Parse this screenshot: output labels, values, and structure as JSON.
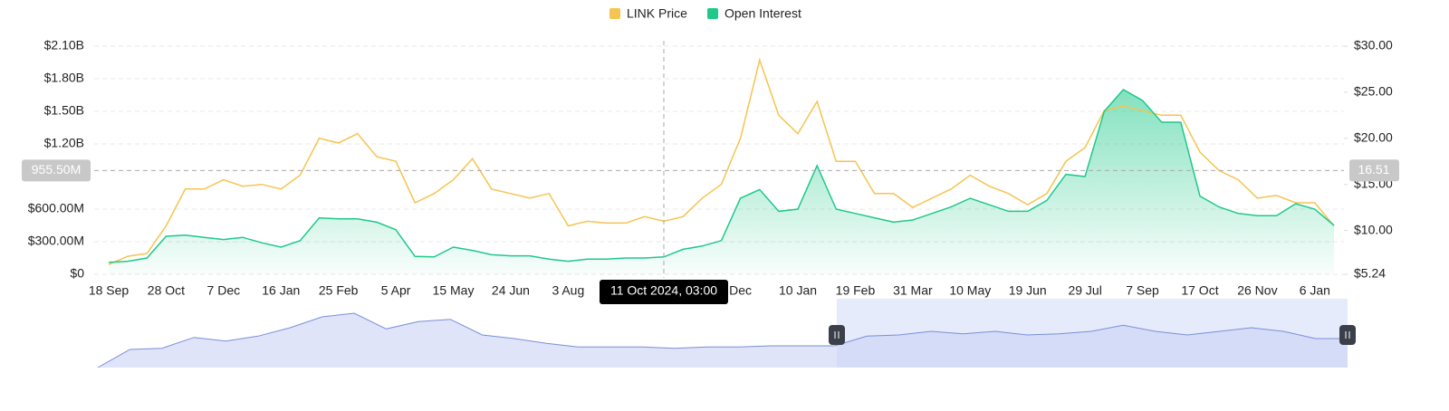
{
  "chart_data": {
    "type": "dual-line-area",
    "legend": [
      "LINK Price",
      "Open Interest"
    ],
    "categories": [
      "18 Sep",
      null,
      null,
      "28 Oct",
      null,
      null,
      "7 Dec",
      null,
      null,
      "16 Jan",
      null,
      null,
      "25 Feb",
      null,
      null,
      "5 Apr",
      null,
      null,
      "15 May",
      null,
      null,
      "24 Jun",
      null,
      null,
      "3 Aug",
      null,
      null,
      null,
      null,
      null,
      null,
      null,
      null,
      "Dec",
      null,
      null,
      "10 Jan",
      null,
      null,
      "19 Feb",
      null,
      null,
      "31 Mar",
      null,
      null,
      "10 May",
      null,
      null,
      "19 Jun",
      null,
      null,
      "29 Jul",
      null,
      null,
      "7 Sep",
      null,
      null,
      "17 Oct",
      null,
      null,
      "26 Nov",
      null,
      null,
      "6 Jan",
      null
    ],
    "series": [
      {
        "name": "LINK Price",
        "color": "#f5c451",
        "axis": "y2",
        "values": [
          6.3,
          7.2,
          7.5,
          10.5,
          14.5,
          14.5,
          15.5,
          14.8,
          15,
          14.5,
          16,
          20,
          19.5,
          20.5,
          18,
          17.5,
          13,
          14,
          15.5,
          17.8,
          14.5,
          14,
          13.5,
          14,
          10.5,
          11,
          10.8,
          10.8,
          11.5,
          11,
          11.5,
          13.5,
          15,
          20,
          28.5,
          22.5,
          20.5,
          24,
          17.5,
          17.5,
          14,
          14,
          12.5,
          13.5,
          14.5,
          16,
          14.8,
          14,
          12.8,
          14,
          17.5,
          19,
          23,
          23.5,
          23,
          22.5,
          22.5,
          18.5,
          16.5,
          15.5,
          13.5,
          13.8,
          13,
          13,
          10.5
        ]
      },
      {
        "name": "Open Interest",
        "color": "#1ec98a",
        "axis": "y",
        "values": [
          110000000,
          120000000,
          150000000,
          350000000,
          360000000,
          340000000,
          320000000,
          340000000,
          290000000,
          250000000,
          310000000,
          520000000,
          510000000,
          510000000,
          480000000,
          410000000,
          165000000,
          160000000,
          250000000,
          220000000,
          180000000,
          170000000,
          170000000,
          140000000,
          120000000,
          140000000,
          140000000,
          150000000,
          150000000,
          160000000,
          230000000,
          260000000,
          310000000,
          700000000,
          780000000,
          580000000,
          600000000,
          1000000000,
          600000000,
          560000000,
          520000000,
          480000000,
          500000000,
          560000000,
          620000000,
          700000000,
          640000000,
          580000000,
          580000000,
          680000000,
          920000000,
          900000000,
          1500000000,
          1700000000,
          1600000000,
          1400000000,
          1400000000,
          720000000,
          620000000,
          560000000,
          540000000,
          540000000,
          650000000,
          600000000,
          450000000
        ]
      }
    ],
    "ylim": [
      0,
      2100000000
    ],
    "yticks": [
      {
        "value": 0,
        "label": "$0"
      },
      {
        "value": 300000000,
        "label": "$300.00M"
      },
      {
        "value": 600000000,
        "label": "$600.00M"
      },
      {
        "value": 1200000000,
        "label": "$1.20B"
      },
      {
        "value": 1500000000,
        "label": "$1.50B"
      },
      {
        "value": 1800000000,
        "label": "$1.80B"
      },
      {
        "value": 2100000000,
        "label": "$2.10B"
      }
    ],
    "y2lim": [
      5.24,
      30
    ],
    "y2ticks": [
      {
        "value": 5.24,
        "label": "$5.24"
      },
      {
        "value": 10,
        "label": "$10.00"
      },
      {
        "value": 15,
        "label": "$15.00"
      },
      {
        "value": 20,
        "label": "$20.00"
      },
      {
        "value": 25,
        "label": "$25.00"
      },
      {
        "value": 30,
        "label": "$30.00"
      }
    ],
    "grid": true,
    "crosshair": {
      "x_label": "11 Oct 2024, 03:00",
      "y": {
        "value": 955500000,
        "label": "955.50M"
      },
      "y2": {
        "value": 16.51,
        "label": "16.51"
      }
    },
    "navigator": {
      "values": [
        0,
        15,
        16,
        25,
        22,
        26,
        33,
        42,
        45,
        32,
        38,
        40,
        27,
        24,
        20,
        17,
        17,
        17,
        16,
        17,
        17,
        18,
        18,
        18,
        26,
        27,
        30,
        28,
        30,
        27,
        28,
        30,
        35,
        30,
        27,
        30,
        33,
        30,
        24,
        24
      ]
    }
  }
}
